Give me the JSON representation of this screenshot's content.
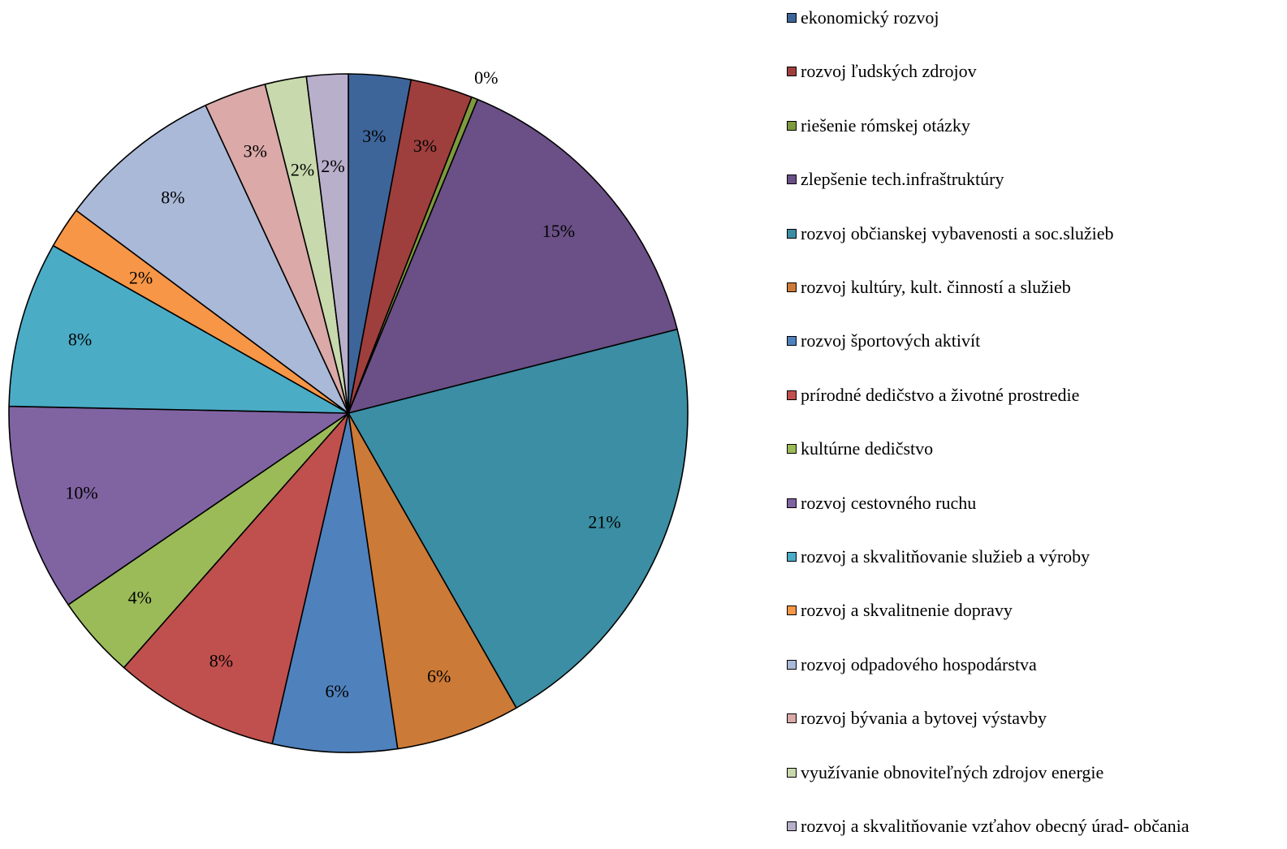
{
  "chart_data": {
    "type": "pie",
    "title": "",
    "legend_position": "right",
    "start_angle": "12 o'clock, clockwise",
    "slices": [
      {
        "label": "ekonomický rozvoj",
        "value": 3,
        "display": "3%",
        "color": "#3E659A"
      },
      {
        "label": "rozvoj ľudských zdrojov",
        "value": 3,
        "display": "3%",
        "color": "#9E3F3D"
      },
      {
        "label": "riešenie rómskej otázky",
        "value": 0.3,
        "display": "0%",
        "color": "#7E9A3D"
      },
      {
        "label": "zlepšenie tech.infraštruktúry",
        "value": 15,
        "display": "15%",
        "color": "#6A5086"
      },
      {
        "label": "rozvoj občianskej vybavenosti a soc.služieb",
        "value": 21,
        "display": "21%",
        "color": "#3B8EA3"
      },
      {
        "label": "rozvoj kultúry, kult. činností a služieb",
        "value": 6,
        "display": "6%",
        "color": "#CC7A37"
      },
      {
        "label": "rozvoj športových aktivít",
        "value": 6,
        "display": "6%",
        "color": "#4F81BD"
      },
      {
        "label": "prírodné dedičstvo a životné prostredie",
        "value": 8,
        "display": "8%",
        "color": "#C0504D"
      },
      {
        "label": "kultúrne dedičstvo",
        "value": 4,
        "display": "4%",
        "color": "#9BBB59"
      },
      {
        "label": "rozvoj cestovného ruchu",
        "value": 10,
        "display": "10%",
        "color": "#8064A2"
      },
      {
        "label": "rozvoj a skvalitňovanie služieb a výroby",
        "value": 8,
        "display": "8%",
        "color": "#4BACC6"
      },
      {
        "label": "rozvoj a skvalitnenie dopravy",
        "value": 2,
        "display": "2%",
        "color": "#F79646"
      },
      {
        "label": "rozvoj odpadového hospodárstva",
        "value": 8,
        "display": "8%",
        "color": "#AAB9D8"
      },
      {
        "label": "rozvoj bývania a bytovej výstavby",
        "value": 3,
        "display": "3%",
        "color": "#DAA9A8"
      },
      {
        "label": "využívanie obnoviteľných zdrojov energie",
        "value": 2,
        "display": "2%",
        "color": "#C8D9AD"
      },
      {
        "label": "rozvoj a skvalitňovanie vzťahov obecný úrad- občania",
        "value": 2,
        "display": "2%",
        "color": "#B8AFCB"
      }
    ]
  }
}
